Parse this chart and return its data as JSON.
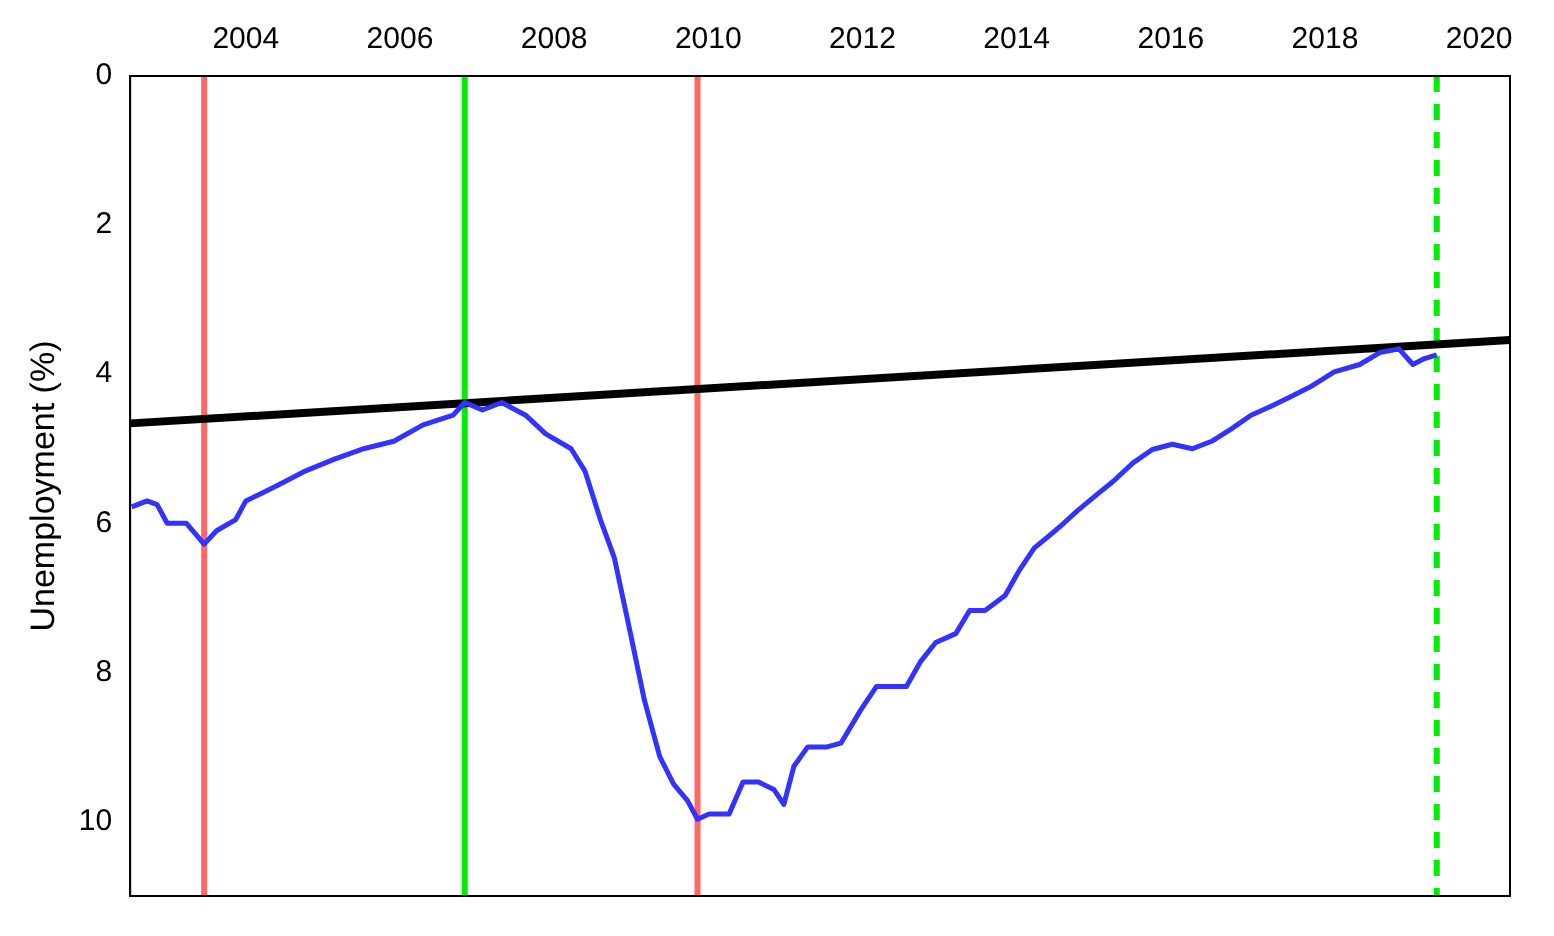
{
  "chart_data": {
    "type": "line",
    "ylabel": "Unemployment (%)",
    "xlim": [
      2002.5,
      2020.4
    ],
    "xticks": [
      2004,
      2006,
      2008,
      2010,
      2012,
      2014,
      2016,
      2018,
      2020
    ],
    "ylim": [
      11,
      0
    ],
    "yticks": [
      0,
      2,
      4,
      6,
      8,
      10
    ],
    "grid": false,
    "legend": false,
    "series": [
      {
        "color": "#3333ff",
        "x": [
          2002.52,
          2002.72,
          2002.85,
          2002.98,
          2003.23,
          2003.46,
          2003.62,
          2003.87,
          2004.0,
          2004.26,
          2004.51,
          2004.77,
          2005.15,
          2005.53,
          2005.92,
          2006.3,
          2006.69,
          2006.84,
          2007.07,
          2007.32,
          2007.63,
          2007.89,
          2008.22,
          2008.4,
          2008.6,
          2008.78,
          2008.99,
          2009.17,
          2009.37,
          2009.55,
          2009.73,
          2009.86,
          2010.01,
          2010.27,
          2010.45,
          2010.65,
          2010.85,
          2010.98,
          2011.11,
          2011.29,
          2011.54,
          2011.72,
          2011.98,
          2012.18,
          2012.57,
          2012.75,
          2012.95,
          2013.21,
          2013.39,
          2013.59,
          2013.85,
          2014.03,
          2014.23,
          2014.43,
          2014.61,
          2014.79,
          2015.0,
          2015.25,
          2015.51,
          2015.76,
          2016.02,
          2016.28,
          2016.53,
          2016.79,
          2017.04,
          2017.3,
          2017.56,
          2017.81,
          2018.12,
          2018.45,
          2018.71,
          2018.96,
          2019.14,
          2019.29,
          2019.45
        ],
        "values": [
          5.78,
          5.7,
          5.75,
          6.0,
          6.0,
          6.28,
          6.1,
          5.95,
          5.7,
          5.57,
          5.44,
          5.3,
          5.14,
          5.0,
          4.9,
          4.68,
          4.55,
          4.38,
          4.48,
          4.38,
          4.55,
          4.8,
          5.0,
          5.3,
          5.95,
          6.46,
          7.48,
          8.37,
          9.13,
          9.5,
          9.72,
          9.97,
          9.9,
          9.9,
          9.47,
          9.47,
          9.57,
          9.77,
          9.26,
          9.0,
          9.0,
          8.95,
          8.5,
          8.19,
          8.19,
          7.86,
          7.6,
          7.48,
          7.17,
          7.17,
          6.97,
          6.64,
          6.33,
          6.16,
          6.0,
          5.83,
          5.65,
          5.44,
          5.19,
          5.01,
          4.94,
          5.0,
          4.9,
          4.73,
          4.55,
          4.43,
          4.3,
          4.17,
          3.97,
          3.87,
          3.71,
          3.66,
          3.87,
          3.79,
          3.74
        ]
      },
      {
        "color": "#000000",
        "x": [
          2002.5,
          2020.4
        ],
        "values": [
          4.66,
          3.54
        ]
      }
    ],
    "ref_lines": [
      {
        "axis": "x",
        "value": 2003.46,
        "color": "#ff6666",
        "line_style": "solid"
      },
      {
        "axis": "x",
        "value": 2006.84,
        "color": "#00ee00",
        "line_style": "solid"
      },
      {
        "axis": "x",
        "value": 2009.86,
        "color": "#ff6666",
        "line_style": "solid"
      },
      {
        "axis": "x",
        "value": 2019.45,
        "color": "#00ee00",
        "line_style": "dashed"
      }
    ]
  }
}
